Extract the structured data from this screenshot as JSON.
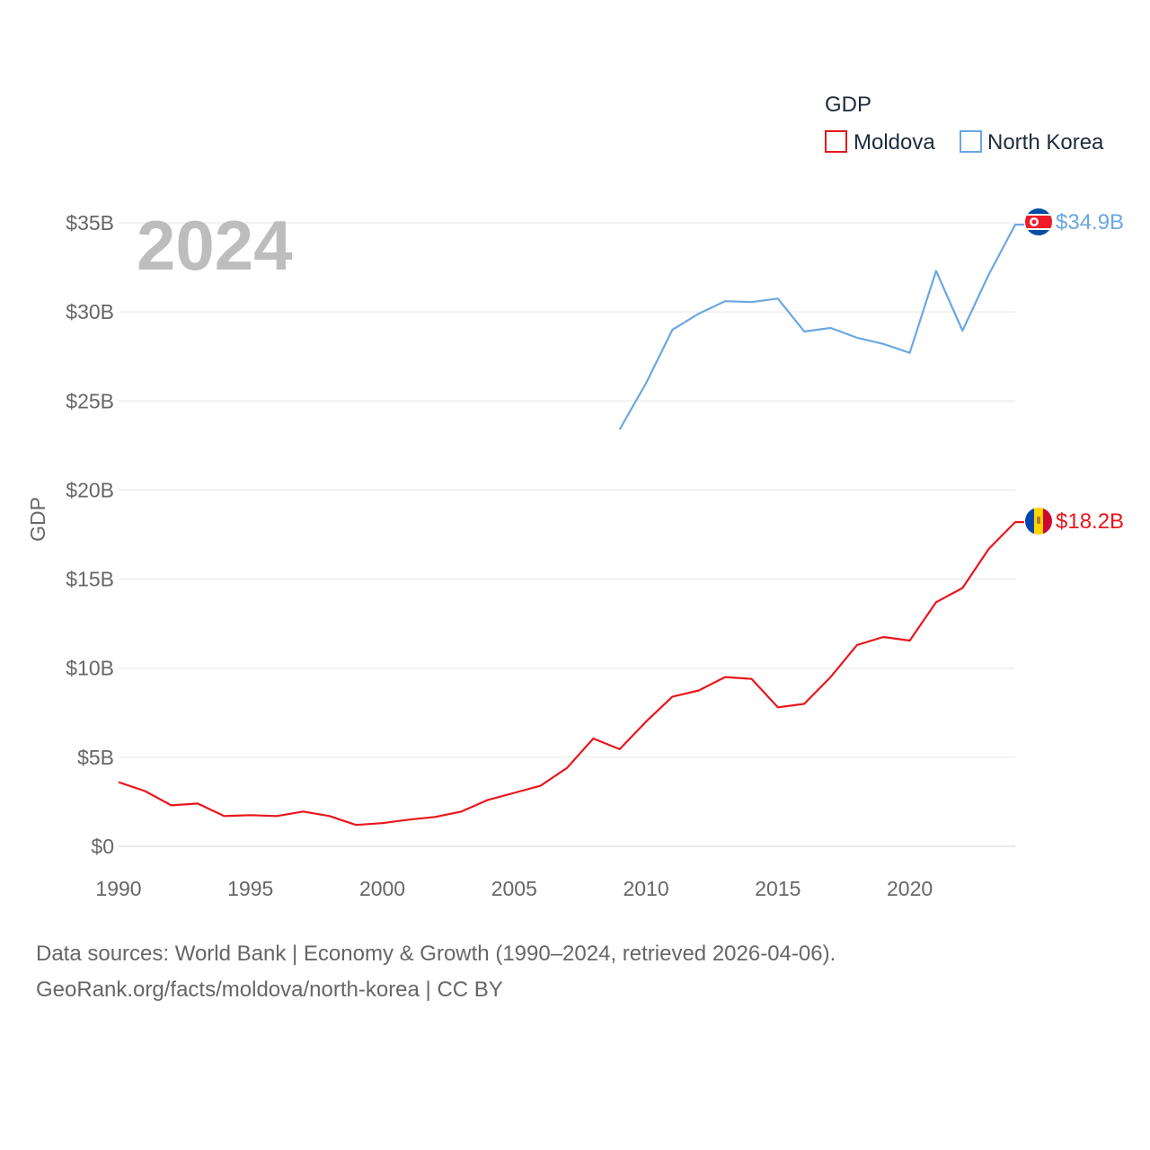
{
  "chart_data": {
    "type": "line",
    "title": "2024",
    "xlabel": "",
    "ylabel": "GDP",
    "xlim": [
      1990,
      2024
    ],
    "ylim": [
      0,
      35
    ],
    "x_ticks": [
      1990,
      1995,
      2000,
      2005,
      2010,
      2015,
      2020
    ],
    "y_ticks": [
      0,
      5,
      10,
      15,
      20,
      25,
      30,
      35
    ],
    "y_tick_labels": [
      "$0",
      "$5B",
      "$10B",
      "$15B",
      "$20B",
      "$25B",
      "$30B",
      "$35B"
    ],
    "grid": true,
    "legend": {
      "title": "GDP",
      "position": "top-right",
      "entries": [
        "Moldova",
        "North Korea"
      ]
    },
    "series": [
      {
        "name": "Moldova",
        "color": "#e8161c",
        "end_label": "$18.2B",
        "x": [
          1990,
          1991,
          1992,
          1993,
          1994,
          1995,
          1996,
          1997,
          1998,
          1999,
          2000,
          2001,
          2002,
          2003,
          2004,
          2005,
          2006,
          2007,
          2008,
          2009,
          2010,
          2011,
          2012,
          2013,
          2014,
          2015,
          2016,
          2017,
          2018,
          2019,
          2020,
          2021,
          2022,
          2023,
          2024
        ],
        "values": [
          3.6,
          3.1,
          2.3,
          2.4,
          1.7,
          1.75,
          1.7,
          1.95,
          1.7,
          1.2,
          1.3,
          1.5,
          1.65,
          1.95,
          2.6,
          3.0,
          3.4,
          4.4,
          6.05,
          5.45,
          7.0,
          8.4,
          8.75,
          9.5,
          9.4,
          7.8,
          8.0,
          9.5,
          11.3,
          11.75,
          11.55,
          13.7,
          14.5,
          16.7,
          18.2
        ]
      },
      {
        "name": "North Korea",
        "color": "#6ba7e2",
        "end_label": "$34.9B",
        "x": [
          2009,
          2010,
          2011,
          2012,
          2013,
          2014,
          2015,
          2016,
          2017,
          2018,
          2019,
          2020,
          2021,
          2022,
          2023,
          2024
        ],
        "values": [
          23.4,
          26.0,
          29.0,
          29.9,
          30.6,
          30.55,
          30.75,
          28.9,
          29.1,
          28.55,
          28.2,
          27.7,
          32.3,
          28.95,
          32.1,
          34.9
        ]
      }
    ]
  },
  "footer": {
    "line1": "Data sources: World Bank | Economy & Growth (1990–2024, retrieved 2026-04-06).",
    "line2": "GeoRank.org/facts/moldova/north-korea | CC BY"
  }
}
